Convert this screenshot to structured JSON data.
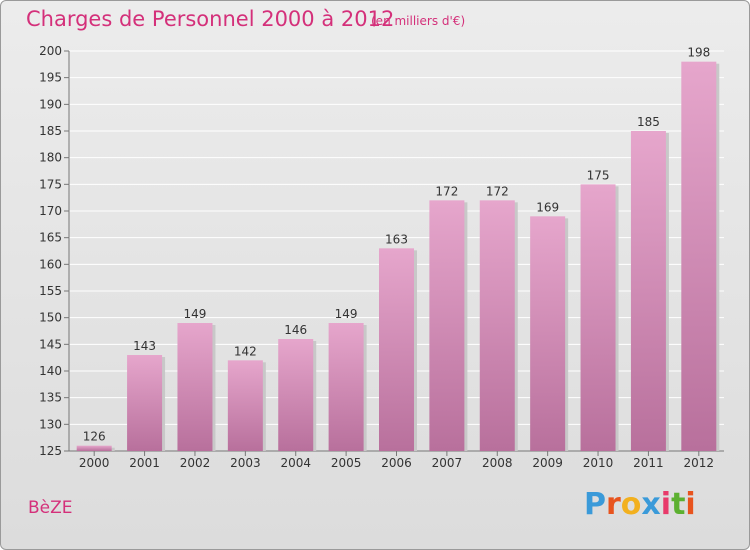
{
  "header": {
    "title": "Charges de Personnel 2000 à 2012",
    "subtitle": "(en milliers d'€)"
  },
  "footer": {
    "commune": "BèZE",
    "brand": "Proxiti",
    "brand_colors": [
      "#3a9ad9",
      "#e8541e",
      "#f2b01e",
      "#3a9ad9",
      "#e83a6a",
      "#5cb030",
      "#e8541e"
    ]
  },
  "colors": {
    "accent": "#d4307a",
    "bar_top": "#e6a6cc",
    "bar_bottom": "#b8709c"
  },
  "chart_data": {
    "type": "bar",
    "categories": [
      "2000",
      "2001",
      "2002",
      "2003",
      "2004",
      "2005",
      "2006",
      "2007",
      "2008",
      "2009",
      "2010",
      "2011",
      "2012"
    ],
    "values": [
      126,
      143,
      149,
      142,
      146,
      149,
      163,
      172,
      172,
      169,
      175,
      185,
      198
    ],
    "ylim": [
      125,
      200
    ],
    "yticks": [
      125,
      130,
      135,
      140,
      145,
      150,
      155,
      160,
      165,
      170,
      175,
      180,
      185,
      190,
      195,
      200
    ],
    "grid": true,
    "data_labels": true
  }
}
